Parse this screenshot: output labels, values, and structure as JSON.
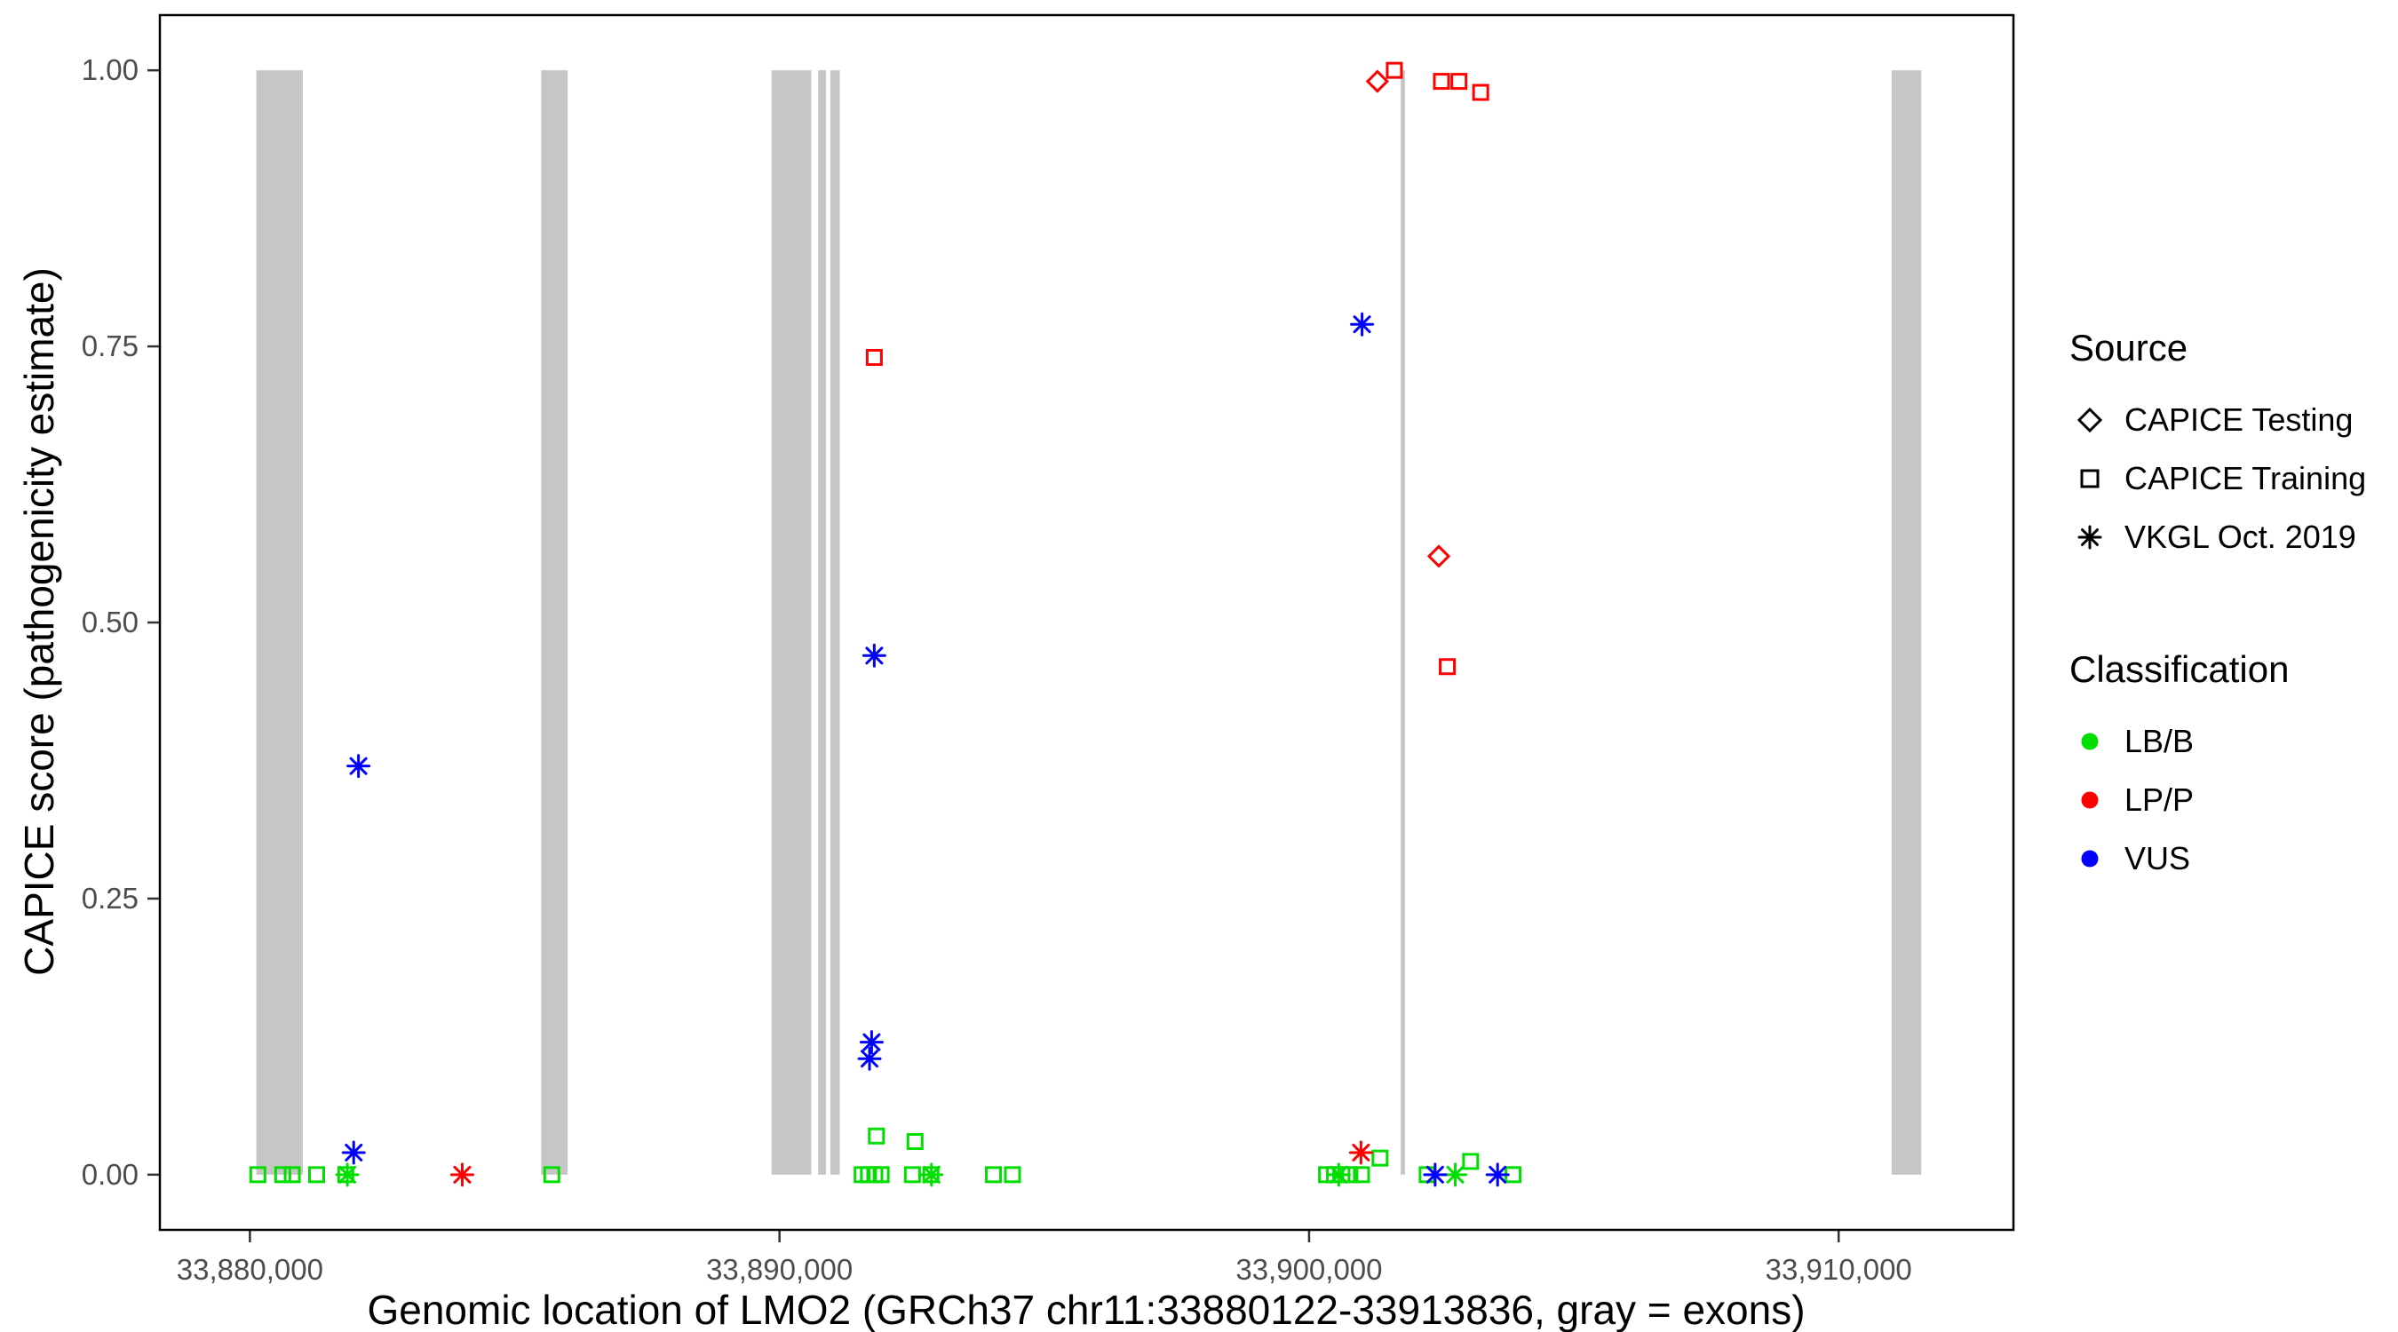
{
  "legend": {
    "source": {
      "title": "Source",
      "items": [
        {
          "label": "CAPICE Testing",
          "shape": "diamond"
        },
        {
          "label": "CAPICE Training",
          "shape": "square"
        },
        {
          "label": "VKGL Oct. 2019",
          "shape": "asterisk"
        }
      ]
    },
    "classification": {
      "title": "Classification",
      "items": [
        {
          "label": "LB/B",
          "color": "#00DF00"
        },
        {
          "label": "LP/P",
          "color": "#FF0000"
        },
        {
          "label": "VUS",
          "color": "#0000FF"
        }
      ]
    }
  },
  "chart_data": {
    "type": "scatter",
    "title": "",
    "xlabel": "Genomic location of LMO2 (GRCh37 chr11:33880122-33913836, gray = exons)",
    "ylabel": "CAPICE score (pathogenicity estimate)",
    "xlim": [
      33878300,
      33913300
    ],
    "ylim": [
      -0.05,
      1.05
    ],
    "grid": false,
    "legend_position": "right",
    "x_ticks": [
      {
        "value": 33880000,
        "label": "33,880,000"
      },
      {
        "value": 33890000,
        "label": "33,890,000"
      },
      {
        "value": 33900000,
        "label": "33,900,000"
      },
      {
        "value": 33910000,
        "label": "33,910,000"
      }
    ],
    "y_ticks": [
      {
        "value": 0.0,
        "label": "0.00"
      },
      {
        "value": 0.25,
        "label": "0.25"
      },
      {
        "value": 0.5,
        "label": "0.50"
      },
      {
        "value": 0.75,
        "label": "0.75"
      },
      {
        "value": 1.0,
        "label": "1.00"
      }
    ],
    "exon_color": "#C6C6C6",
    "exons": [
      [
        33880122,
        33881000
      ],
      [
        33885500,
        33886000
      ],
      [
        33889850,
        33890600
      ],
      [
        33890730,
        33890880
      ],
      [
        33890960,
        33891140
      ],
      [
        33901730,
        33901810
      ],
      [
        33911000,
        33911560
      ]
    ],
    "shape_by_source": {
      "CAPICE Testing": "diamond",
      "CAPICE Training": "square",
      "VKGL Oct. 2019": "asterisk"
    },
    "color_by_classification": {
      "LB/B": "#00DF00",
      "LP/P": "#FF0000",
      "VUS": "#0000FF"
    },
    "points": [
      {
        "x": 33880150,
        "y": 0.0,
        "source": "CAPICE Training",
        "classification": "LB/B"
      },
      {
        "x": 33880620,
        "y": 0.0,
        "source": "CAPICE Training",
        "classification": "LB/B"
      },
      {
        "x": 33880800,
        "y": 0.0,
        "source": "CAPICE Training",
        "classification": "LB/B"
      },
      {
        "x": 33881260,
        "y": 0.0,
        "source": "CAPICE Training",
        "classification": "LB/B"
      },
      {
        "x": 33881810,
        "y": 0.0,
        "source": "CAPICE Training",
        "classification": "LB/B"
      },
      {
        "x": 33885700,
        "y": 0.0,
        "source": "CAPICE Training",
        "classification": "LB/B"
      },
      {
        "x": 33891560,
        "y": 0.0,
        "source": "CAPICE Training",
        "classification": "LB/B"
      },
      {
        "x": 33891680,
        "y": 0.0,
        "source": "CAPICE Training",
        "classification": "LB/B"
      },
      {
        "x": 33891800,
        "y": 0.0,
        "source": "CAPICE Training",
        "classification": "LB/B"
      },
      {
        "x": 33891920,
        "y": 0.0,
        "source": "CAPICE Training",
        "classification": "LB/B"
      },
      {
        "x": 33891830,
        "y": 0.035,
        "source": "CAPICE Training",
        "classification": "LB/B"
      },
      {
        "x": 33892560,
        "y": 0.03,
        "source": "CAPICE Training",
        "classification": "LB/B"
      },
      {
        "x": 33892510,
        "y": 0.0,
        "source": "CAPICE Training",
        "classification": "LB/B"
      },
      {
        "x": 33892860,
        "y": 0.0,
        "source": "CAPICE Training",
        "classification": "LB/B"
      },
      {
        "x": 33894040,
        "y": 0.0,
        "source": "CAPICE Training",
        "classification": "LB/B"
      },
      {
        "x": 33894400,
        "y": 0.0,
        "source": "CAPICE Training",
        "classification": "LB/B"
      },
      {
        "x": 33900330,
        "y": 0.0,
        "source": "CAPICE Training",
        "classification": "LB/B"
      },
      {
        "x": 33900480,
        "y": 0.0,
        "source": "CAPICE Training",
        "classification": "LB/B"
      },
      {
        "x": 33900620,
        "y": 0.0,
        "source": "CAPICE Training",
        "classification": "LB/B"
      },
      {
        "x": 33900770,
        "y": 0.0,
        "source": "CAPICE Training",
        "classification": "LB/B"
      },
      {
        "x": 33900990,
        "y": 0.0,
        "source": "CAPICE Training",
        "classification": "LB/B"
      },
      {
        "x": 33901340,
        "y": 0.015,
        "source": "CAPICE Training",
        "classification": "LB/B"
      },
      {
        "x": 33902230,
        "y": 0.0,
        "source": "CAPICE Training",
        "classification": "LB/B"
      },
      {
        "x": 33903050,
        "y": 0.012,
        "source": "CAPICE Training",
        "classification": "LB/B"
      },
      {
        "x": 33903850,
        "y": 0.0,
        "source": "CAPICE Training",
        "classification": "LB/B"
      },
      {
        "x": 33881840,
        "y": 0.0,
        "source": "VKGL Oct. 2019",
        "classification": "LB/B"
      },
      {
        "x": 33892870,
        "y": 0.0,
        "source": "VKGL Oct. 2019",
        "classification": "LB/B"
      },
      {
        "x": 33900560,
        "y": 0.0,
        "source": "VKGL Oct. 2019",
        "classification": "LB/B"
      },
      {
        "x": 33902760,
        "y": 0.0,
        "source": "VKGL Oct. 2019",
        "classification": "LB/B"
      },
      {
        "x": 33884010,
        "y": 0.0,
        "source": "VKGL Oct. 2019",
        "classification": "LP/P"
      },
      {
        "x": 33900980,
        "y": 0.02,
        "source": "VKGL Oct. 2019",
        "classification": "LP/P"
      },
      {
        "x": 33891790,
        "y": 0.74,
        "source": "CAPICE Training",
        "classification": "LP/P"
      },
      {
        "x": 33901610,
        "y": 1.0,
        "source": "CAPICE Training",
        "classification": "LP/P"
      },
      {
        "x": 33902500,
        "y": 0.99,
        "source": "CAPICE Training",
        "classification": "LP/P"
      },
      {
        "x": 33902830,
        "y": 0.99,
        "source": "CAPICE Training",
        "classification": "LP/P"
      },
      {
        "x": 33903240,
        "y": 0.98,
        "source": "CAPICE Training",
        "classification": "LP/P"
      },
      {
        "x": 33902610,
        "y": 0.46,
        "source": "CAPICE Training",
        "classification": "LP/P"
      },
      {
        "x": 33901290,
        "y": 0.99,
        "source": "CAPICE Testing",
        "classification": "LP/P"
      },
      {
        "x": 33902450,
        "y": 0.56,
        "source": "CAPICE Testing",
        "classification": "LP/P"
      },
      {
        "x": 33882050,
        "y": 0.37,
        "source": "VKGL Oct. 2019",
        "classification": "VUS"
      },
      {
        "x": 33881960,
        "y": 0.02,
        "source": "VKGL Oct. 2019",
        "classification": "VUS"
      },
      {
        "x": 33891790,
        "y": 0.47,
        "source": "VKGL Oct. 2019",
        "classification": "VUS"
      },
      {
        "x": 33891740,
        "y": 0.12,
        "source": "VKGL Oct. 2019",
        "classification": "VUS"
      },
      {
        "x": 33891700,
        "y": 0.105,
        "source": "VKGL Oct. 2019",
        "classification": "VUS"
      },
      {
        "x": 33901000,
        "y": 0.77,
        "source": "VKGL Oct. 2019",
        "classification": "VUS"
      },
      {
        "x": 33902380,
        "y": 0.0,
        "source": "VKGL Oct. 2019",
        "classification": "VUS"
      },
      {
        "x": 33903560,
        "y": 0.0,
        "source": "VKGL Oct. 2019",
        "classification": "VUS"
      }
    ]
  }
}
